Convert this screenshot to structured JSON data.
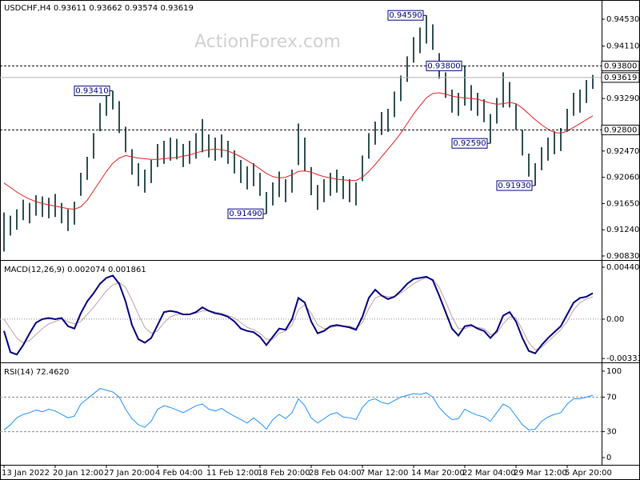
{
  "chart_data": [
    {
      "type": "ohlc",
      "title": "USDCHF,H4  0.93611 0.93662 0.93574 0.93619",
      "watermark": "ActionForex.com",
      "color": "#2f4f4f",
      "high": [
        0.9151,
        0.9146,
        0.9156,
        0.9171,
        0.9166,
        0.9178,
        0.9176,
        0.9174,
        0.918,
        0.9166,
        0.9156,
        0.9168,
        0.9213,
        0.9238,
        0.9275,
        0.9322,
        0.9338,
        0.9341,
        0.9325,
        0.9285,
        0.925,
        0.9228,
        0.9218,
        0.9233,
        0.9258,
        0.9263,
        0.9268,
        0.9266,
        0.9258,
        0.9263,
        0.9275,
        0.9297,
        0.9273,
        0.9268,
        0.9273,
        0.9263,
        0.9248,
        0.9233,
        0.9223,
        0.9228,
        0.9213,
        0.9183,
        0.9198,
        0.9215,
        0.9203,
        0.9218,
        0.929,
        0.9268,
        0.9222,
        0.9194,
        0.9203,
        0.9213,
        0.9218,
        0.9208,
        0.9203,
        0.9198,
        0.924,
        0.9275,
        0.9293,
        0.9308,
        0.9313,
        0.934,
        0.9365,
        0.9395,
        0.9425,
        0.944,
        0.9459,
        0.9445,
        0.94,
        0.937,
        0.9343,
        0.9338,
        0.938,
        0.935,
        0.9338,
        0.9328,
        0.9305,
        0.933,
        0.937,
        0.9355,
        0.932,
        0.928,
        0.9243,
        0.9228,
        0.9253,
        0.9268,
        0.9278,
        0.9283,
        0.9313,
        0.9338,
        0.9343,
        0.9358,
        0.9366
      ],
      "low": [
        0.909,
        0.9115,
        0.9124,
        0.9139,
        0.9134,
        0.9146,
        0.9144,
        0.9142,
        0.9144,
        0.9134,
        0.9122,
        0.9132,
        0.9177,
        0.9202,
        0.9235,
        0.9278,
        0.9302,
        0.9312,
        0.9275,
        0.9245,
        0.921,
        0.9192,
        0.9182,
        0.9197,
        0.9222,
        0.9227,
        0.9232,
        0.9234,
        0.9222,
        0.9227,
        0.9235,
        0.9245,
        0.9237,
        0.9232,
        0.9237,
        0.9227,
        0.9212,
        0.9197,
        0.9187,
        0.9192,
        0.9177,
        0.9149,
        0.9162,
        0.9175,
        0.9167,
        0.9182,
        0.9225,
        0.9215,
        0.9178,
        0.9155,
        0.9167,
        0.9177,
        0.9182,
        0.9172,
        0.9167,
        0.9162,
        0.92,
        0.9235,
        0.9257,
        0.9272,
        0.9277,
        0.93,
        0.9325,
        0.9355,
        0.9385,
        0.94,
        0.9415,
        0.9405,
        0.936,
        0.933,
        0.9307,
        0.9302,
        0.9318,
        0.931,
        0.9302,
        0.9292,
        0.9259,
        0.929,
        0.9315,
        0.9315,
        0.928,
        0.924,
        0.9207,
        0.9193,
        0.9217,
        0.9232,
        0.9242,
        0.9247,
        0.9277,
        0.9302,
        0.9307,
        0.9322,
        0.9344
      ],
      "ma": {
        "color": "#e0201e",
        "values": [
          0.9197,
          0.919,
          0.9183,
          0.9177,
          0.9172,
          0.9168,
          0.9165,
          0.9163,
          0.9161,
          0.9159,
          0.9157,
          0.9156,
          0.916,
          0.917,
          0.9185,
          0.92,
          0.9215,
          0.9228,
          0.9236,
          0.924,
          0.9238,
          0.9236,
          0.9235,
          0.9234,
          0.9234,
          0.9235,
          0.9236,
          0.9237,
          0.9239,
          0.9241,
          0.9244,
          0.9247,
          0.9249,
          0.925,
          0.9249,
          0.9247,
          0.9243,
          0.9238,
          0.9232,
          0.9226,
          0.9219,
          0.9212,
          0.9207,
          0.9205,
          0.9206,
          0.921,
          0.9215,
          0.9216,
          0.9214,
          0.921,
          0.9207,
          0.9205,
          0.9203,
          0.9202,
          0.9201,
          0.9201,
          0.9206,
          0.9215,
          0.9226,
          0.9238,
          0.925,
          0.9262,
          0.9275,
          0.929,
          0.9305,
          0.9318,
          0.933,
          0.9337,
          0.9338,
          0.9336,
          0.9333,
          0.9331,
          0.933,
          0.9329,
          0.9328,
          0.9325,
          0.9322,
          0.932,
          0.9321,
          0.9323,
          0.9321,
          0.9314,
          0.9305,
          0.9296,
          0.9288,
          0.9281,
          0.9276,
          0.9275,
          0.9278,
          0.9284,
          0.929,
          0.9296,
          0.9302
        ]
      },
      "ylim": [
        0.9078,
        0.9483
      ],
      "yticks": [
        {
          "value": 0.9453,
          "label": "0.94530"
        },
        {
          "value": 0.9411,
          "label": "0.94110"
        },
        {
          "value": 0.9329,
          "label": "0.93290"
        },
        {
          "value": 0.9247,
          "label": "0.92470"
        },
        {
          "value": 0.9206,
          "label": "0.92060"
        },
        {
          "value": 0.9165,
          "label": "0.91650"
        },
        {
          "value": 0.9124,
          "label": "0.91240"
        },
        {
          "value": 0.9083,
          "label": "0.90830"
        }
      ],
      "levels": [
        {
          "value": 0.938,
          "label": "0.93800"
        },
        {
          "value": 0.928,
          "label": "0.92800"
        }
      ],
      "current": {
        "value": 0.93619,
        "label": "0.93619"
      },
      "annotations": [
        {
          "value": 0.9341,
          "label": "0.93410"
        },
        {
          "value": 0.9149,
          "label": "0.91490"
        },
        {
          "value": 0.9459,
          "label": "0.94590"
        },
        {
          "value": 0.938,
          "label": "0.93800"
        },
        {
          "value": 0.9259,
          "label": "0.92590"
        },
        {
          "value": 0.9193,
          "label": "0.91930"
        }
      ]
    },
    {
      "type": "macd",
      "title": "MACD(12,26,9) 0.002074 0.001861",
      "series": [
        {
          "color": "#000080",
          "values": [
            -0.001,
            -0.0028,
            -0.003,
            -0.0022,
            -0.0012,
            -0.0003,
            0.0,
            0.0001,
            0.0,
            0.0001,
            -0.0006,
            -0.0008,
            0.0005,
            0.0015,
            0.0022,
            0.003,
            0.0035,
            0.0037,
            0.003,
            0.0015,
            -0.0005,
            -0.0017,
            -0.002,
            -0.0016,
            -0.0005,
            0.0006,
            0.0007,
            0.0006,
            0.0004,
            0.0004,
            0.0006,
            0.001,
            0.0007,
            0.0005,
            0.0004,
            0.0002,
            -0.0002,
            -0.0008,
            -0.001,
            -0.0011,
            -0.0015,
            -0.0022,
            -0.0015,
            -0.0008,
            -0.0009,
            0.0,
            0.0018,
            0.0014,
            -0.0002,
            -0.0012,
            -0.001,
            -0.0006,
            -0.0005,
            -0.0006,
            -0.0007,
            -0.0009,
            0.0002,
            0.0018,
            0.0025,
            0.002,
            0.0017,
            0.0019,
            0.0024,
            0.003,
            0.0034,
            0.0035,
            0.0036,
            0.0033,
            0.002,
            0.0006,
            -0.0008,
            -0.0014,
            -0.0006,
            -0.0005,
            -0.0008,
            -0.001,
            -0.0016,
            -0.001,
            0.0003,
            0.0006,
            -0.0002,
            -0.0016,
            -0.0027,
            -0.0029,
            -0.0022,
            -0.0016,
            -0.0011,
            -0.0006,
            0.0004,
            0.0014,
            0.0018,
            0.0019,
            0.0022
          ]
        },
        {
          "color": "#c0a0a0",
          "values": [
            0.0,
            -0.0008,
            -0.0016,
            -0.002,
            -0.0018,
            -0.0013,
            -0.0008,
            -0.0004,
            -0.0002,
            0.0,
            -0.0002,
            -0.0004,
            -0.0002,
            0.0004,
            0.001,
            0.0017,
            0.0024,
            0.0029,
            0.0031,
            0.0027,
            0.0016,
            0.0004,
            -0.0007,
            -0.0012,
            -0.001,
            -0.0003,
            0.0002,
            0.0004,
            0.0004,
            0.0004,
            0.0005,
            0.0007,
            0.0007,
            0.0006,
            0.0005,
            0.0003,
            0.0001,
            -0.0003,
            -0.0007,
            -0.0009,
            -0.0012,
            -0.0017,
            -0.0017,
            -0.0012,
            -0.001,
            -0.0005,
            0.0008,
            0.0012,
            0.0005,
            -0.0005,
            -0.0008,
            -0.0007,
            -0.0006,
            -0.0006,
            -0.0006,
            -0.0008,
            -0.0003,
            0.0009,
            0.0018,
            0.002,
            0.0019,
            0.0019,
            0.0022,
            0.0026,
            0.003,
            0.0033,
            0.0035,
            0.0034,
            0.0027,
            0.0015,
            0.0002,
            -0.0008,
            -0.0008,
            -0.0006,
            -0.0007,
            -0.0008,
            -0.0013,
            -0.0012,
            -0.0004,
            0.0002,
            0.0001,
            -0.0009,
            -0.002,
            -0.0026,
            -0.0024,
            -0.0019,
            -0.0014,
            -0.0009,
            -0.0002,
            0.0008,
            0.0014,
            0.0017,
            0.0019
          ]
        }
      ],
      "ylim": [
        -0.0036,
        0.00488
      ],
      "yticks": [
        0.004403,
        {
          "value": 0,
          "label": "0.00"
        },
        -0.003338
      ]
    },
    {
      "type": "rsi",
      "title": "RSI(14) 72.4620",
      "color": "#1e90ff",
      "values": [
        32,
        38,
        46,
        50,
        52,
        55,
        53,
        56,
        54,
        50,
        46,
        48,
        62,
        68,
        74,
        80,
        78,
        76,
        70,
        56,
        45,
        38,
        35,
        42,
        56,
        60,
        58,
        55,
        52,
        56,
        60,
        62,
        56,
        54,
        57,
        52,
        48,
        44,
        40,
        46,
        40,
        33,
        44,
        50,
        45,
        52,
        68,
        60,
        46,
        40,
        45,
        50,
        52,
        47,
        46,
        44,
        58,
        66,
        68,
        64,
        62,
        66,
        70,
        72,
        74,
        73,
        75,
        70,
        58,
        50,
        44,
        45,
        56,
        52,
        49,
        47,
        42,
        52,
        62,
        58,
        48,
        38,
        32,
        33,
        42,
        47,
        50,
        52,
        62,
        68,
        68,
        70,
        72
      ],
      "ylim": [
        -7.4,
        108.3
      ],
      "yticks": [
        100,
        70,
        30,
        0
      ],
      "levels": [
        70,
        30
      ],
      "categories": [
        "13 Jan 2022",
        null,
        null,
        null,
        null,
        null,
        null,
        null,
        "20 Jan 12:00",
        null,
        null,
        null,
        null,
        null,
        null,
        null,
        "27 Jan 20:00",
        null,
        null,
        null,
        null,
        null,
        null,
        null,
        "4 Feb 04:00",
        null,
        null,
        null,
        null,
        null,
        null,
        null,
        "11 Feb 12:00",
        null,
        null,
        null,
        null,
        null,
        null,
        null,
        "18 Feb 20:00",
        null,
        null,
        null,
        null,
        null,
        null,
        null,
        "28 Feb 04:00",
        null,
        null,
        null,
        null,
        null,
        null,
        null,
        "7 Mar 12:00",
        null,
        null,
        null,
        null,
        null,
        null,
        null,
        "14 Mar 20:00",
        null,
        null,
        null,
        null,
        null,
        null,
        null,
        "22 Mar 04:00",
        null,
        null,
        null,
        null,
        null,
        null,
        null,
        "29 Mar 12:00",
        null,
        null,
        null,
        null,
        null,
        null,
        null,
        "5 Apr 20:00",
        null,
        null,
        null,
        null
      ]
    }
  ]
}
